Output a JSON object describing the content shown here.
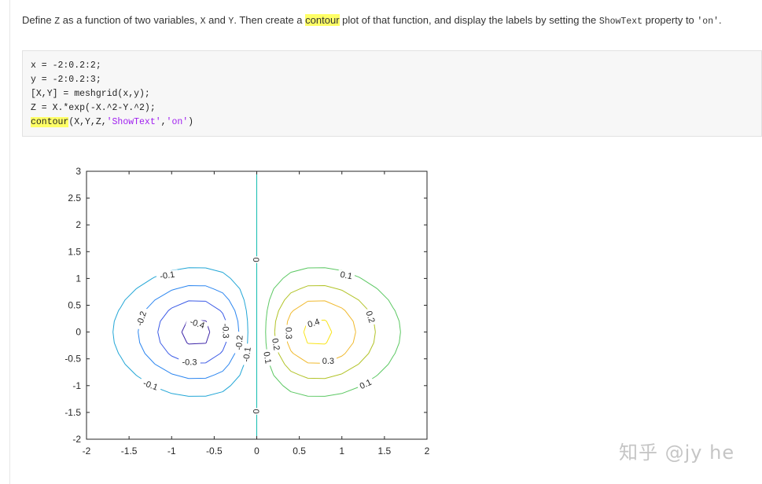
{
  "description": {
    "parts": [
      {
        "text": "Define ",
        "style": "text"
      },
      {
        "text": "Z",
        "style": "mono"
      },
      {
        "text": " as a function of two variables, ",
        "style": "text"
      },
      {
        "text": "X",
        "style": "mono"
      },
      {
        "text": " and ",
        "style": "text"
      },
      {
        "text": "Y",
        "style": "mono"
      },
      {
        "text": ". Then create a ",
        "style": "text"
      },
      {
        "text": "contour",
        "style": "hl"
      },
      {
        "text": " plot of that function, and display the labels by setting the ",
        "style": "text"
      },
      {
        "text": "ShowText",
        "style": "mono"
      },
      {
        "text": " property to ",
        "style": "text"
      },
      {
        "text": "'on'",
        "style": "mono"
      },
      {
        "text": ".",
        "style": "text"
      }
    ]
  },
  "code": {
    "lines": [
      [
        {
          "text": "x = -2:0.2:2;",
          "style": "plain"
        }
      ],
      [
        {
          "text": "y = -2:0.2:3;",
          "style": "plain"
        }
      ],
      [
        {
          "text": "[X,Y] = meshgrid(x,y);",
          "style": "plain"
        }
      ],
      [
        {
          "text": "Z = X.*exp(-X.^2-Y.^2);",
          "style": "plain"
        }
      ],
      [
        {
          "text": "contour",
          "style": "hl"
        },
        {
          "text": "(X,Y,Z,",
          "style": "plain"
        },
        {
          "text": "'ShowText'",
          "style": "str"
        },
        {
          "text": ",",
          "style": "plain"
        },
        {
          "text": "'on'",
          "style": "str"
        },
        {
          "text": ")",
          "style": "plain"
        }
      ]
    ]
  },
  "chart_data": {
    "type": "contour",
    "function": "Z = X.*exp(-X.^2-Y.^2)",
    "x_range": [
      -2,
      2
    ],
    "y_range": [
      -2,
      3
    ],
    "x_step": 0.2,
    "y_step": 0.2,
    "xlim": [
      -2,
      2
    ],
    "ylim": [
      -2,
      3
    ],
    "x_ticks": [
      "-2",
      "-1.5",
      "-1",
      "-0.5",
      "0",
      "0.5",
      "1",
      "1.5",
      "2"
    ],
    "y_ticks": [
      "-2",
      "-1.5",
      "-1",
      "-0.5",
      "0",
      "0.5",
      "1",
      "1.5",
      "2",
      "2.5",
      "3"
    ],
    "levels": [
      {
        "value": -0.4,
        "color": "#3e26a8"
      },
      {
        "value": -0.3,
        "color": "#3b5ae6"
      },
      {
        "value": -0.2,
        "color": "#2c86f0"
      },
      {
        "value": -0.1,
        "color": "#22a6d6"
      },
      {
        "value": 0,
        "color": "#12bcb0"
      },
      {
        "value": 0.1,
        "color": "#5cc863"
      },
      {
        "value": 0.2,
        "color": "#b2c328"
      },
      {
        "value": 0.3,
        "color": "#f0b92e"
      },
      {
        "value": 0.4,
        "color": "#f9e419"
      }
    ],
    "contour_labels": [
      {
        "text": "-0.1",
        "x": -1.05,
        "y": 1.05,
        "angle": -8
      },
      {
        "text": "-0.1",
        "x": -1.25,
        "y": -1.0,
        "angle": 20
      },
      {
        "text": "-0.1",
        "x": -0.11,
        "y": -0.42,
        "angle": -82
      },
      {
        "text": "-0.2",
        "x": -1.35,
        "y": 0.25,
        "angle": -72
      },
      {
        "text": "-0.2",
        "x": -0.2,
        "y": -0.2,
        "angle": -85
      },
      {
        "text": "-0.3",
        "x": -0.79,
        "y": -0.57,
        "angle": 0
      },
      {
        "text": "-0.3",
        "x": -0.37,
        "y": 0.02,
        "angle": 88
      },
      {
        "text": "-0.4",
        "x": -0.7,
        "y": 0.15,
        "angle": 18
      },
      {
        "text": "0",
        "x": 0.0,
        "y": 1.35,
        "angle": -90
      },
      {
        "text": "0",
        "x": 0.0,
        "y": -1.48,
        "angle": -90
      },
      {
        "text": "0.1",
        "x": 1.05,
        "y": 1.05,
        "angle": 10
      },
      {
        "text": "0.1",
        "x": 1.28,
        "y": -0.98,
        "angle": -25
      },
      {
        "text": "0.1",
        "x": 0.12,
        "y": -0.48,
        "angle": 80
      },
      {
        "text": "0.2",
        "x": 1.33,
        "y": 0.28,
        "angle": 72
      },
      {
        "text": "0.2",
        "x": 0.22,
        "y": -0.23,
        "angle": 80
      },
      {
        "text": "0.3",
        "x": 0.84,
        "y": -0.55,
        "angle": 0
      },
      {
        "text": "0.3",
        "x": 0.37,
        "y": -0.02,
        "angle": 88
      },
      {
        "text": "0.4",
        "x": 0.67,
        "y": 0.16,
        "angle": -18
      }
    ]
  },
  "watermark": "知乎 @jy he",
  "colors": {
    "highlight": "#ffff66",
    "code_bg": "#f7f7f7",
    "string": "#a020f0"
  }
}
